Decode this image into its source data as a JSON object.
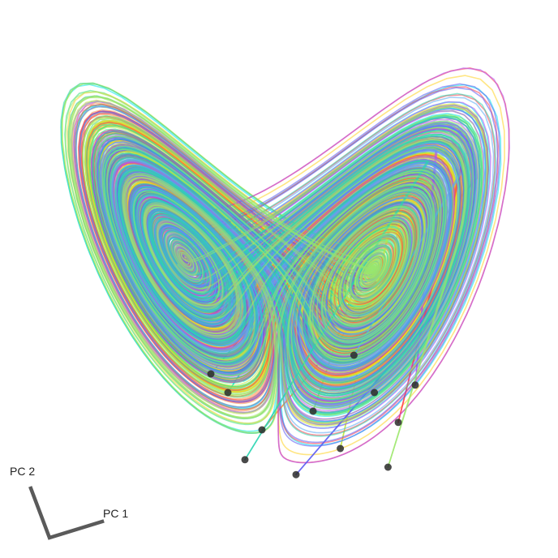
{
  "chart_data": {
    "type": "line",
    "xlabel": "PC 1",
    "ylabel": "PC 2",
    "grid": false,
    "legend": "none",
    "series": [
      {
        "color": "#00e5ee",
        "start": [
          -0.15,
          -0.4
        ]
      },
      {
        "color": "#ff8c42",
        "start": [
          -0.05,
          -0.5
        ]
      },
      {
        "color": "#33e07a",
        "start": [
          -0.2,
          -0.35
        ]
      },
      {
        "color": "#7de54f",
        "start": [
          0.1,
          -0.45
        ]
      },
      {
        "color": "#c2e83a",
        "start": [
          0.18,
          -0.55
        ]
      },
      {
        "color": "#ffd21f",
        "start": [
          0.28,
          -0.4
        ]
      },
      {
        "color": "#ff3b4a",
        "start": [
          0.35,
          -0.48
        ]
      },
      {
        "color": "#b04cf2",
        "start": [
          0.4,
          -0.38
        ]
      },
      {
        "color": "#5a5af2",
        "start": [
          0.05,
          -0.62
        ]
      },
      {
        "color": "#5aa8f2",
        "start": [
          0.22,
          -0.3
        ]
      },
      {
        "color": "#28d6b0",
        "start": [
          -0.1,
          -0.58
        ]
      },
      {
        "color": "#9be86a",
        "start": [
          0.32,
          -0.6
        ]
      }
    ],
    "n_start_points": 12
  }
}
